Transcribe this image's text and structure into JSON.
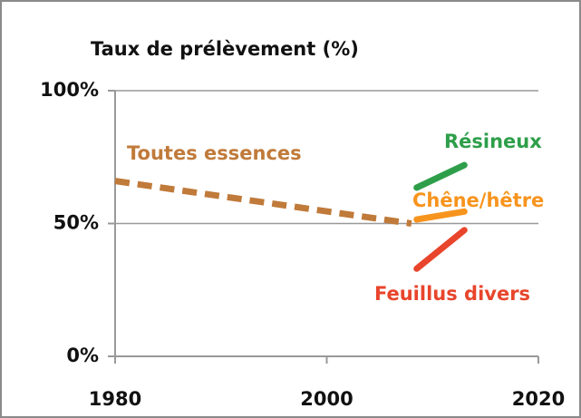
{
  "chart_data": {
    "type": "line",
    "title": "Taux de prélèvement (%)",
    "xlim": [
      1980,
      2020
    ],
    "xticks": [
      1980,
      2000,
      2020
    ],
    "ylim": [
      0,
      100
    ],
    "yticks": [
      {
        "value": 0,
        "label": "0%"
      },
      {
        "value": 50,
        "label": "50%"
      },
      {
        "value": 100,
        "label": "100%"
      }
    ],
    "grid": true,
    "series": [
      {
        "name": "Toutes essences",
        "color": "#c07a3a",
        "dashed": true,
        "x": [
          1980,
          2008
        ],
        "values": [
          66,
          50
        ]
      },
      {
        "name": "Résineux",
        "color": "#2e9e4a",
        "x": [
          2008.5,
          2013
        ],
        "values": [
          63.5,
          72
        ]
      },
      {
        "name": "Chêne/hêtre",
        "color": "#f7941d",
        "x": [
          2008.5,
          2013
        ],
        "values": [
          51.5,
          54.5
        ]
      },
      {
        "name": "Feuillus divers",
        "color": "#e8452c",
        "x": [
          2008.5,
          2013
        ],
        "values": [
          33,
          47.5
        ]
      }
    ]
  }
}
